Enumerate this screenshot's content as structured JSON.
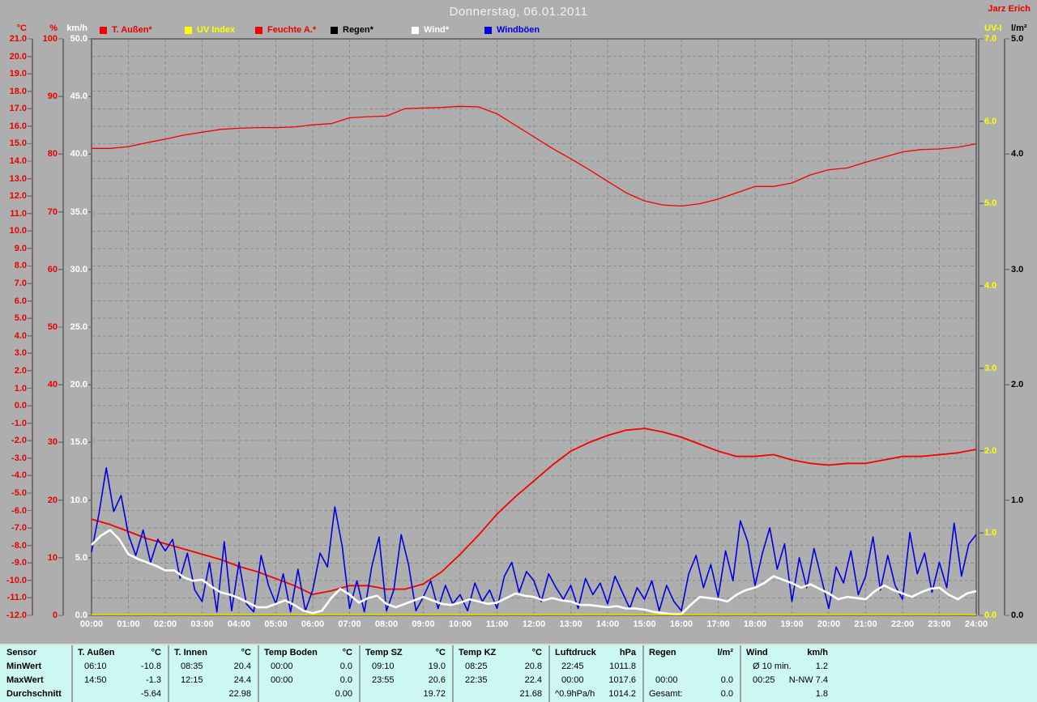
{
  "header": {
    "title": "Donnerstag, 06.01.2011",
    "station": "Jarz Erich"
  },
  "legend": [
    {
      "id": "t-aussen",
      "label": "T. Außen*",
      "color": "#f40000",
      "text_color": "#e60000"
    },
    {
      "id": "uv-index",
      "label": "UV Index",
      "color": "#ffff00",
      "text_color": "#ffff00"
    },
    {
      "id": "feuchte-a",
      "label": "Feuchte A.*",
      "color": "#f40000",
      "text_color": "#e60000"
    },
    {
      "id": "regen",
      "label": "Regen*",
      "color": "#000000",
      "text_color": "#000000"
    },
    {
      "id": "wind",
      "label": "Wind*",
      "color": "#ffffff",
      "text_color": "#ffffff"
    },
    {
      "id": "windboeen",
      "label": "Windböen",
      "color": "#0000e0",
      "text_color": "#0000e0"
    }
  ],
  "axes": {
    "left": [
      {
        "unit": "°C",
        "color": "#e60000",
        "min": -12,
        "max": 21,
        "step": 1,
        "decimals": 1
      },
      {
        "unit": "%",
        "color": "#e60000",
        "min": 0,
        "max": 100,
        "step": 10,
        "decimals": 0
      },
      {
        "unit": "km/h",
        "color": "#ffffff",
        "min": 0,
        "max": 50,
        "step": 5,
        "decimals": 1
      }
    ],
    "right": [
      {
        "unit": "UV-I",
        "color": "#ffff00",
        "min": 0,
        "max": 7,
        "step": 1,
        "decimals": 1
      },
      {
        "unit": "l/m²",
        "color": "#000000",
        "min": 0,
        "max": 5,
        "step": 1,
        "decimals": 1
      }
    ],
    "time": {
      "start_hour": 0,
      "end_hour": 24,
      "step_hours": 1,
      "suffix": ":00"
    }
  },
  "chart_data": {
    "type": "line",
    "title": "Donnerstag, 06.01.2011",
    "x_unit": "hour of day",
    "x_range": [
      0,
      24
    ],
    "grid": true,
    "legend_position": "top",
    "series": [
      {
        "id": "regen",
        "name": "Regen",
        "axis": "l/m²",
        "color": "#000000",
        "width": 1.5,
        "x0": 0,
        "dx": 24,
        "values": [
          0,
          0
        ]
      },
      {
        "id": "feuchte-aussen",
        "name": "Feuchte A.",
        "axis": "%",
        "color": "#f40000",
        "width": 1.3,
        "x0": 0,
        "dx": 0.5,
        "values": [
          81.0,
          81.0,
          81.3,
          82.0,
          82.6,
          83.3,
          83.8,
          84.3,
          84.5,
          84.6,
          84.6,
          84.7,
          85.1,
          85.3,
          86.3,
          86.5,
          86.6,
          87.9,
          88.0,
          88.1,
          88.3,
          88.2,
          87.0,
          85.0,
          83.0,
          81.0,
          79.2,
          77.3,
          75.3,
          73.3,
          71.9,
          71.2,
          71.0,
          71.4,
          72.2,
          73.3,
          74.4,
          74.4,
          75.0,
          76.4,
          77.3,
          77.6,
          78.6,
          79.5,
          80.4,
          80.8,
          80.9,
          81.2,
          81.8
        ]
      },
      {
        "id": "temp-aussen",
        "name": "T. Außen",
        "axis": "°C",
        "color": "#f40000",
        "width": 1.8,
        "x0": 0,
        "dx": 0.5,
        "values": [
          -6.5,
          -6.8,
          -7.2,
          -7.6,
          -7.9,
          -8.2,
          -8.5,
          -8.8,
          -9.2,
          -9.5,
          -9.9,
          -10.3,
          -10.8,
          -10.6,
          -10.3,
          -10.3,
          -10.5,
          -10.5,
          -10.2,
          -9.5,
          -8.5,
          -7.4,
          -6.2,
          -5.2,
          -4.3,
          -3.4,
          -2.6,
          -2.1,
          -1.7,
          -1.4,
          -1.3,
          -1.5,
          -1.8,
          -2.2,
          -2.6,
          -2.9,
          -2.9,
          -2.8,
          -3.1,
          -3.3,
          -3.4,
          -3.3,
          -3.3,
          -3.1,
          -2.9,
          -2.9,
          -2.8,
          -2.7,
          -2.5
        ]
      },
      {
        "id": "windboeen",
        "name": "Windböen",
        "axis": "km/h",
        "color": "#0000e0",
        "width": 1.6,
        "x0": 0,
        "dx": 0.2,
        "values": [
          5.5,
          8.8,
          12.8,
          9.0,
          10.4,
          7.0,
          5.2,
          7.4,
          4.6,
          6.6,
          5.6,
          6.6,
          3.2,
          5.4,
          2.2,
          1.2,
          4.6,
          0.3,
          6.4,
          0.4,
          4.6,
          1.0,
          0.3,
          5.2,
          2.6,
          1.0,
          3.6,
          0.3,
          4.0,
          0.4,
          2.2,
          5.4,
          4.2,
          9.4,
          6.0,
          0.6,
          3.0,
          0.3,
          4.2,
          6.8,
          0.4,
          2.2,
          7.0,
          4.4,
          0.4,
          1.6,
          3.0,
          0.6,
          2.6,
          1.0,
          1.8,
          0.4,
          2.8,
          1.2,
          2.2,
          0.6,
          3.4,
          4.6,
          2.0,
          3.8,
          3.0,
          1.2,
          3.6,
          2.4,
          1.4,
          2.6,
          0.6,
          3.2,
          1.8,
          2.8,
          1.0,
          3.4,
          2.0,
          0.6,
          2.4,
          1.4,
          3.0,
          0.4,
          2.6,
          1.2,
          0.4,
          3.6,
          5.2,
          2.4,
          4.4,
          1.6,
          5.6,
          3.0,
          8.2,
          6.4,
          2.6,
          5.4,
          7.6,
          4.0,
          6.2,
          1.2,
          5.0,
          2.4,
          5.8,
          3.2,
          0.6,
          4.2,
          2.8,
          5.6,
          1.8,
          3.4,
          6.8,
          2.2,
          5.2,
          2.6,
          1.4,
          7.2,
          3.6,
          5.4,
          2.0,
          4.6,
          2.4,
          8.0,
          3.4,
          6.2,
          7.0
        ]
      },
      {
        "id": "wind",
        "name": "Wind",
        "axis": "km/h",
        "color": "#ffffff",
        "width": 2.6,
        "x0": 0,
        "dx": 0.25,
        "values": [
          6.1,
          6.9,
          7.4,
          6.6,
          5.3,
          4.9,
          4.6,
          4.3,
          3.9,
          3.9,
          3.3,
          3.0,
          3.1,
          2.5,
          2.0,
          1.8,
          1.5,
          1.1,
          0.7,
          0.7,
          1.0,
          1.3,
          0.9,
          0.4,
          0.2,
          0.4,
          1.5,
          2.3,
          1.8,
          1.1,
          1.5,
          1.7,
          1.0,
          0.7,
          1.0,
          1.3,
          1.6,
          1.3,
          1.0,
          0.9,
          1.1,
          1.4,
          1.2,
          1.0,
          1.1,
          1.5,
          1.9,
          1.7,
          1.6,
          1.3,
          1.5,
          1.3,
          1.2,
          0.9,
          0.9,
          0.8,
          0.7,
          0.8,
          0.6,
          0.6,
          0.5,
          0.3,
          0.2,
          0.1,
          0.1,
          0.9,
          1.6,
          1.5,
          1.4,
          1.2,
          1.8,
          2.2,
          2.4,
          2.8,
          3.4,
          3.1,
          2.8,
          2.4,
          2.7,
          2.3,
          1.9,
          1.4,
          1.6,
          1.5,
          1.4,
          2.1,
          2.6,
          2.2,
          1.9,
          1.6,
          2.0,
          2.3,
          2.4,
          1.8,
          1.4,
          1.9,
          2.1
        ]
      },
      {
        "id": "uv-index",
        "name": "UV Index",
        "axis": "UV-I",
        "color": "#ffff00",
        "width": 1.6,
        "x0": 0,
        "dx": 24,
        "values": [
          0,
          0
        ]
      }
    ]
  },
  "table": {
    "row_labels": [
      "Sensor",
      "MinWert",
      "MaxWert",
      "Durchschnitt"
    ],
    "columns": [
      {
        "name": "T. Außen",
        "unit": "°C",
        "rows": [
          [
            "06:10",
            "-10.8"
          ],
          [
            "14:50",
            "-1.3"
          ],
          [
            "",
            "-5.64"
          ]
        ]
      },
      {
        "name": "T. Innen",
        "unit": "°C",
        "rows": [
          [
            "08:35",
            "20.4"
          ],
          [
            "12:15",
            "24.4"
          ],
          [
            "",
            "22.98"
          ]
        ]
      },
      {
        "name": "Temp Boden",
        "unit": "°C",
        "rows": [
          [
            "00:00",
            "0.0"
          ],
          [
            "00:00",
            "0.0"
          ],
          [
            "",
            "0.00"
          ]
        ]
      },
      {
        "name": "Temp SZ",
        "unit": "°C",
        "rows": [
          [
            "09:10",
            "19.0"
          ],
          [
            "23:55",
            "20.6"
          ],
          [
            "",
            "19.72"
          ]
        ]
      },
      {
        "name": "Temp KZ",
        "unit": "°C",
        "rows": [
          [
            "08:25",
            "20.8"
          ],
          [
            "22:35",
            "22.4"
          ],
          [
            "",
            "21.68"
          ]
        ]
      },
      {
        "name": "Luftdruck",
        "unit": "hPa",
        "rows": [
          [
            "22:45",
            "1011.8"
          ],
          [
            "00:00",
            "1017.6"
          ],
          [
            "^0.9hPa/h",
            "1014.2"
          ]
        ]
      },
      {
        "name": "Regen",
        "unit": "l/m²",
        "rows": [
          [
            "",
            ""
          ],
          [
            "00:00",
            "0.0"
          ],
          [
            "Gesamt:",
            "0.0"
          ]
        ]
      },
      {
        "name": "Wind",
        "unit": "km/h",
        "rows": [
          [
            "Ø 10 min.",
            "1.2"
          ],
          [
            "00:25",
            "N-NW 7.4"
          ],
          [
            "",
            "1.8"
          ]
        ]
      }
    ]
  },
  "colors": {
    "background": "#aeaeae",
    "grid": "#8c8c8c",
    "plot_border": "#6f6f6f",
    "table_background": "#ccf8f1",
    "title_text": "#f2f2f2",
    "accent_red": "#e60000",
    "accent_yellow": "#ffff00",
    "accent_blue": "#0000e0"
  }
}
